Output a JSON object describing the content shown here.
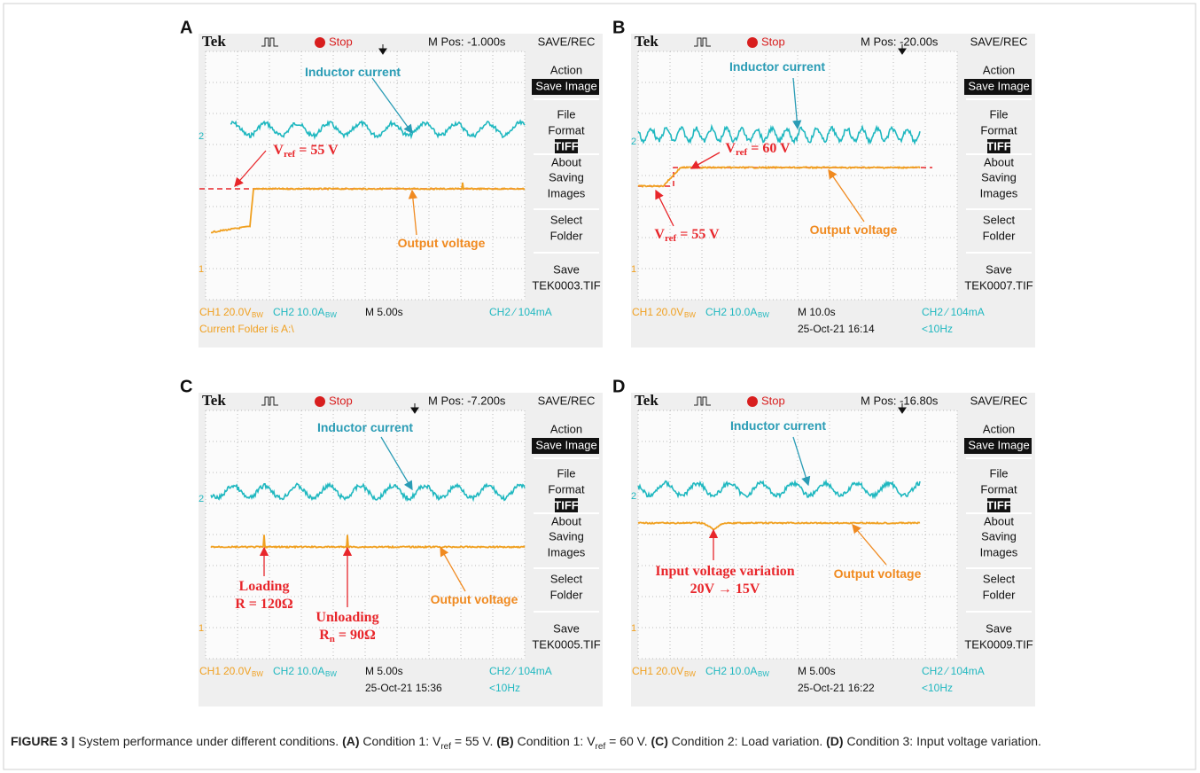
{
  "panels": [
    {
      "letter": "A",
      "brand": "Tek",
      "run_state": "Stop",
      "position": "M Pos: -1.000s",
      "menu_title": "SAVE/REC",
      "menu": [
        {
          "text": "Action"
        },
        {
          "text": "Save Image",
          "inverted": true
        },
        {
          "text": "File"
        },
        {
          "text": "Format"
        },
        {
          "text": "TIFF",
          "inverted": true
        },
        {
          "text": "About"
        },
        {
          "text": "Saving"
        },
        {
          "text": "Images"
        },
        {
          "text": "Select"
        },
        {
          "text": "Folder"
        },
        {
          "text": "Save"
        },
        {
          "text": "TEK0003.TIF"
        }
      ],
      "markers": [
        "2",
        "1"
      ],
      "status_row1": [
        {
          "text": "CH1",
          "color": "#f0a020"
        },
        {
          "text": "20.0V",
          "color": "#f0a020"
        },
        {
          "text": "BW",
          "color": "#f0a020"
        },
        {
          "text": "CH2",
          "color": "#20b8c0"
        },
        {
          "text": "10.0A",
          "color": "#20b8c0"
        },
        {
          "text": "BW",
          "color": "#20b8c0"
        },
        {
          "text": "M 5.00s",
          "color": "#111111"
        },
        {
          "text": "CH2 ⁄ 104mA",
          "color": "#20b8c0"
        }
      ],
      "status_row2": [
        {
          "text": "Current Folder is A:\\",
          "color": "#f0a020"
        }
      ],
      "annotations": [
        {
          "color": "#2a9cb5",
          "parts": [
            {
              "text": "Inductor current"
            }
          ]
        },
        {
          "color": "#f08a20",
          "parts": [
            {
              "text": "Output voltage"
            }
          ]
        },
        {
          "color": "#e8262b",
          "parts": [
            {
              "text": "V"
            },
            {
              "text": "ref",
              "sub": true
            },
            {
              "text": " = 55 V"
            }
          ]
        }
      ]
    },
    {
      "letter": "B",
      "brand": "Tek",
      "run_state": "Stop",
      "position": "M Pos: -20.00s",
      "menu_title": "SAVE/REC",
      "menu": [
        {
          "text": "Action"
        },
        {
          "text": "Save Image",
          "inverted": true
        },
        {
          "text": "File"
        },
        {
          "text": "Format"
        },
        {
          "text": "TIFF",
          "inverted": true
        },
        {
          "text": "About"
        },
        {
          "text": "Saving"
        },
        {
          "text": "Images"
        },
        {
          "text": "Select"
        },
        {
          "text": "Folder"
        },
        {
          "text": "Save"
        },
        {
          "text": "TEK0007.TIF"
        }
      ],
      "markers": [
        "2",
        "1"
      ],
      "status_row1": [
        {
          "text": "CH1",
          "color": "#f0a020"
        },
        {
          "text": "20.0V",
          "color": "#f0a020"
        },
        {
          "text": "BW",
          "color": "#f0a020"
        },
        {
          "text": "CH2",
          "color": "#20b8c0"
        },
        {
          "text": "10.0A",
          "color": "#20b8c0"
        },
        {
          "text": "BW",
          "color": "#20b8c0"
        },
        {
          "text": "M 10.0s",
          "color": "#111111"
        },
        {
          "text": "CH2 ⁄ 104mA",
          "color": "#20b8c0"
        }
      ],
      "status_row2": [
        {
          "text": "25-Oct-21 16:14",
          "color": "#111111"
        },
        {
          "text": "<10Hz",
          "color": "#20b8c0"
        }
      ],
      "annotations": [
        {
          "color": "#2a9cb5",
          "parts": [
            {
              "text": "Inductor current"
            }
          ]
        },
        {
          "color": "#f08a20",
          "parts": [
            {
              "text": "Output voltage"
            }
          ]
        },
        {
          "color": "#e8262b",
          "parts": [
            {
              "text": "V"
            },
            {
              "text": "ref",
              "sub": true
            },
            {
              "text": " = 60 V"
            }
          ]
        },
        {
          "color": "#e8262b",
          "parts": [
            {
              "text": "V"
            },
            {
              "text": "ref",
              "sub": true
            },
            {
              "text": " = 55 V"
            }
          ]
        }
      ]
    },
    {
      "letter": "C",
      "brand": "Tek",
      "run_state": "Stop",
      "position": "M Pos: -7.200s",
      "menu_title": "SAVE/REC",
      "menu": [
        {
          "text": "Action"
        },
        {
          "text": "Save Image",
          "inverted": true
        },
        {
          "text": "File"
        },
        {
          "text": "Format"
        },
        {
          "text": "TIFF",
          "inverted": true
        },
        {
          "text": "About"
        },
        {
          "text": "Saving"
        },
        {
          "text": "Images"
        },
        {
          "text": "Select"
        },
        {
          "text": "Folder"
        },
        {
          "text": "Save"
        },
        {
          "text": "TEK0005.TIF"
        }
      ],
      "markers": [
        "2",
        "1"
      ],
      "status_row1": [
        {
          "text": "CH1",
          "color": "#f0a020"
        },
        {
          "text": "20.0V",
          "color": "#f0a020"
        },
        {
          "text": "BW",
          "color": "#f0a020"
        },
        {
          "text": "CH2",
          "color": "#20b8c0"
        },
        {
          "text": "10.0A",
          "color": "#20b8c0"
        },
        {
          "text": "BW",
          "color": "#20b8c0"
        },
        {
          "text": "M 5.00s",
          "color": "#111111"
        },
        {
          "text": "CH2 ⁄ 104mA",
          "color": "#20b8c0"
        }
      ],
      "status_row2": [
        {
          "text": "25-Oct-21 15:36",
          "color": "#111111"
        },
        {
          "text": "<10Hz",
          "color": "#20b8c0"
        }
      ],
      "annotations": [
        {
          "color": "#2a9cb5",
          "parts": [
            {
              "text": "Inductor current"
            }
          ]
        },
        {
          "color": "#f08a20",
          "parts": [
            {
              "text": "Output voltage"
            }
          ]
        },
        {
          "color": "#e8262b",
          "parts": [
            {
              "text": "Loading"
            }
          ]
        },
        {
          "color": "#e8262b",
          "parts": [
            {
              "text": "R = 120Ω"
            }
          ]
        },
        {
          "color": "#e8262b",
          "parts": [
            {
              "text": "Unloading"
            }
          ]
        },
        {
          "color": "#e8262b",
          "parts": [
            {
              "text": "R"
            },
            {
              "text": "n",
              "sub": true
            },
            {
              "text": " = 90Ω"
            }
          ]
        }
      ]
    },
    {
      "letter": "D",
      "brand": "Tek",
      "run_state": "Stop",
      "position": "M Pos: -16.80s",
      "menu_title": "SAVE/REC",
      "menu": [
        {
          "text": "Action"
        },
        {
          "text": "Save Image",
          "inverted": true
        },
        {
          "text": "File"
        },
        {
          "text": "Format"
        },
        {
          "text": "TIFF",
          "inverted": true
        },
        {
          "text": "About"
        },
        {
          "text": "Saving"
        },
        {
          "text": "Images"
        },
        {
          "text": "Select"
        },
        {
          "text": "Folder"
        },
        {
          "text": "Save"
        },
        {
          "text": "TEK0009.TIF"
        }
      ],
      "markers": [
        "2",
        "1"
      ],
      "status_row1": [
        {
          "text": "CH1",
          "color": "#f0a020"
        },
        {
          "text": "20.0V",
          "color": "#f0a020"
        },
        {
          "text": "BW",
          "color": "#f0a020"
        },
        {
          "text": "CH2",
          "color": "#20b8c0"
        },
        {
          "text": "10.0A",
          "color": "#20b8c0"
        },
        {
          "text": "BW",
          "color": "#20b8c0"
        },
        {
          "text": "M 5.00s",
          "color": "#111111"
        },
        {
          "text": "CH2 ⁄ 104mA",
          "color": "#20b8c0"
        }
      ],
      "status_row2": [
        {
          "text": "25-Oct-21 16:22",
          "color": "#111111"
        },
        {
          "text": "<10Hz",
          "color": "#20b8c0"
        }
      ],
      "annotations": [
        {
          "color": "#2a9cb5",
          "parts": [
            {
              "text": "Inductor current"
            }
          ]
        },
        {
          "color": "#f08a20",
          "parts": [
            {
              "text": "Output voltage"
            }
          ]
        },
        {
          "color": "#e8262b",
          "parts": [
            {
              "text": "Input voltage variation"
            }
          ]
        },
        {
          "color": "#e8262b",
          "parts": [
            {
              "text": "20V → 15V"
            }
          ]
        }
      ]
    }
  ],
  "caption": [
    {
      "text": "FIGURE 3 |",
      "style": "bold"
    },
    {
      "text": " System performance under different conditions. ",
      "style": "normal"
    },
    {
      "text": "(A)",
      "style": "bold"
    },
    {
      "text": " Condition 1: V",
      "style": "normal"
    },
    {
      "text": "ref",
      "style": "sub"
    },
    {
      "text": " = 55 V. ",
      "style": "normal"
    },
    {
      "text": "(B)",
      "style": "bold"
    },
    {
      "text": " Condition 1: V",
      "style": "normal"
    },
    {
      "text": "ref",
      "style": "sub"
    },
    {
      "text": " = 60 V. ",
      "style": "normal"
    },
    {
      "text": "(C)",
      "style": "bold"
    },
    {
      "text": " Condition 2: Load variation. ",
      "style": "normal"
    },
    {
      "text": "(D)",
      "style": "bold"
    },
    {
      "text": " Condition 3: Input voltage variation.",
      "style": "normal"
    }
  ]
}
